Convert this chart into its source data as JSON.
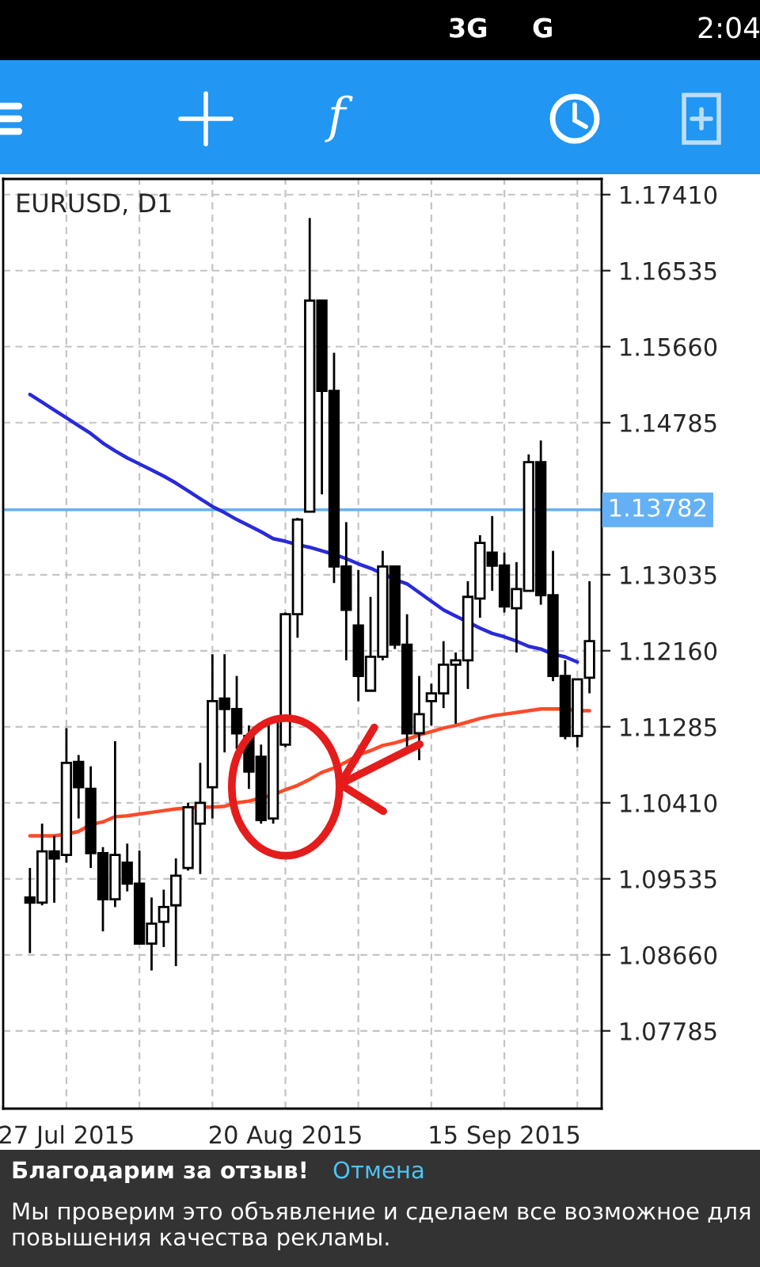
{
  "chart_data": {
    "type": "candlestick",
    "title": "EURUSD, D1",
    "categories": [
      null,
      null,
      null,
      "27 Jul 2015",
      null,
      null,
      null,
      null,
      null,
      null,
      null,
      null,
      null,
      null,
      null,
      null,
      null,
      null,
      null,
      null,
      null,
      "20 Aug 2015",
      null,
      null,
      null,
      null,
      null,
      null,
      null,
      null,
      null,
      null,
      null,
      null,
      null,
      null,
      null,
      null,
      null,
      "15 Sep 2015",
      null,
      null,
      null,
      null,
      null,
      null,
      null
    ],
    "ohlc": [
      [
        1.0932,
        1.0966,
        1.0868,
        1.0926
      ],
      [
        1.0926,
        1.1017,
        1.0923,
        1.0985
      ],
      [
        1.0985,
        1.1003,
        1.0926,
        1.0977
      ],
      [
        1.0981,
        1.1127,
        1.0972,
        1.1087
      ],
      [
        1.1088,
        1.1096,
        1.1023,
        1.1059
      ],
      [
        1.1057,
        1.1083,
        1.0966,
        1.0983
      ],
      [
        1.0983,
        1.099,
        1.0893,
        1.093
      ],
      [
        1.093,
        1.1112,
        1.0921,
        1.0981
      ],
      [
        1.0972,
        1.0994,
        1.0939,
        1.0948
      ],
      [
        1.0948,
        1.0986,
        1.0879,
        1.0879
      ],
      [
        1.0879,
        1.0932,
        1.0848,
        1.0902
      ],
      [
        1.0904,
        1.0941,
        1.0875,
        1.0921
      ],
      [
        1.0923,
        1.0977,
        1.0853,
        1.0957
      ],
      [
        1.0966,
        1.1041,
        1.0963,
        1.1036
      ],
      [
        1.1017,
        1.1087,
        1.0959,
        1.1041
      ],
      [
        1.1059,
        1.1212,
        1.1023,
        1.1158
      ],
      [
        1.1161,
        1.1212,
        1.1099,
        1.1149
      ],
      [
        1.1149,
        1.1187,
        1.1103,
        1.1121
      ],
      [
        1.1118,
        1.113,
        1.1057,
        1.1077
      ],
      [
        1.1094,
        1.1108,
        1.1017,
        1.1021
      ],
      [
        1.1023,
        1.1139,
        1.1017,
        1.1136
      ],
      [
        1.1108,
        1.126,
        1.1105,
        1.1258
      ],
      [
        1.1258,
        1.1369,
        1.1231,
        1.1367
      ],
      [
        1.1376,
        1.1714,
        1.1376,
        1.1619
      ],
      [
        1.1619,
        1.1619,
        1.1396,
        1.1515
      ],
      [
        1.1515,
        1.1559,
        1.1294,
        1.1313
      ],
      [
        1.1313,
        1.1364,
        1.1205,
        1.1263
      ],
      [
        1.1245,
        1.1309,
        1.1158,
        1.1187
      ],
      [
        1.117,
        1.1278,
        1.117,
        1.1209
      ],
      [
        1.1209,
        1.1331,
        1.1205,
        1.1313
      ],
      [
        1.1313,
        1.1314,
        1.1218,
        1.1223
      ],
      [
        1.1223,
        1.1258,
        1.1103,
        1.1121
      ],
      [
        1.1121,
        1.1187,
        1.109,
        1.1143
      ],
      [
        1.1158,
        1.1178,
        1.113,
        1.1167
      ],
      [
        1.1167,
        1.1227,
        1.115,
        1.12
      ],
      [
        1.12,
        1.1214,
        1.1132,
        1.1205
      ],
      [
        1.1205,
        1.1296,
        1.1172,
        1.1278
      ],
      [
        1.1276,
        1.1349,
        1.1254,
        1.134
      ],
      [
        1.1329,
        1.1371,
        1.1285,
        1.1314
      ],
      [
        1.1314,
        1.1329,
        1.126,
        1.1267
      ],
      [
        1.1265,
        1.1318,
        1.1214,
        1.1287
      ],
      [
        1.1285,
        1.1442,
        1.1285,
        1.1433
      ],
      [
        1.1433,
        1.1458,
        1.1269,
        1.128
      ],
      [
        1.128,
        1.1331,
        1.1181,
        1.1187
      ],
      [
        1.1187,
        1.1205,
        1.1114,
        1.1118
      ],
      [
        1.1118,
        1.1183,
        1.1105,
        1.1183
      ],
      [
        1.1185,
        1.1296,
        1.1167,
        1.1227
      ]
    ],
    "series": [
      {
        "type": "line",
        "color": "#2a2ad8",
        "values": [
          1.1511,
          1.1502,
          1.1493,
          1.1484,
          1.1475,
          1.1466,
          1.1455,
          1.1446,
          1.1438,
          1.1431,
          1.1424,
          1.1417,
          1.1409,
          1.14,
          1.1391,
          1.1382,
          1.1375,
          1.1367,
          1.136,
          1.1353,
          1.1345,
          1.1342,
          1.1338,
          1.1335,
          1.1331,
          1.1327,
          1.1322,
          1.1316,
          1.1311,
          null,
          1.1298,
          1.1293,
          1.1283,
          1.1273,
          1.1263,
          1.1256,
          1.1249,
          1.1242,
          1.1236,
          1.1232,
          1.1227,
          1.1221,
          1.1218,
          1.1212,
          1.1209,
          1.1203,
          null
        ]
      },
      {
        "type": "line",
        "color": "#ff4a2a",
        "values": [
          1.1003,
          1.1003,
          1.1003,
          1.1005,
          1.1008,
          1.1016,
          1.1019,
          1.1025,
          1.1026,
          1.1028,
          1.103,
          1.1032,
          1.1034,
          null,
          1.1036,
          1.1036,
          1.1037,
          1.1041,
          1.1043,
          null,
          1.105,
          1.1056,
          1.1061,
          1.1068,
          1.1076,
          1.1081,
          1.1088,
          1.1096,
          1.1101,
          1.1107,
          1.111,
          1.1114,
          1.1119,
          1.1123,
          1.1127,
          1.113,
          1.1134,
          1.1138,
          1.1141,
          1.1143,
          1.1145,
          1.1147,
          1.1149,
          1.1149,
          1.1149,
          1.1147,
          1.1147
        ]
      }
    ],
    "ylim": [
      1.0689,
      1.1759
    ],
    "yticks": [
      {
        "value": 1.1741,
        "label": "1.17410"
      },
      {
        "value": 1.16535,
        "label": "1.16535"
      },
      {
        "value": 1.1566,
        "label": "1.15660"
      },
      {
        "value": 1.14785,
        "label": "1.14785"
      },
      {
        "value": 1.13035,
        "label": "1.13035"
      },
      {
        "value": 1.1216,
        "label": "1.12160"
      },
      {
        "value": 1.11285,
        "label": "1.11285"
      },
      {
        "value": 1.1041,
        "label": "1.10410"
      },
      {
        "value": 1.09535,
        "label": "1.09535"
      },
      {
        "value": 1.0866,
        "label": "1.08660"
      },
      {
        "value": 1.07785,
        "label": "1.07785"
      }
    ],
    "ref_lines": [
      {
        "axis": "y",
        "value": 1.13782,
        "label": "1.13782",
        "color": "#64b0f4"
      }
    ],
    "grid": true,
    "annotations": [
      "3G",
      "G",
      "2:04",
      "f",
      "Благодарим за отзыв!",
      "Отмена",
      "Мы проверим это объявление и сделаем все возможное для повышения качества рекламы."
    ]
  }
}
